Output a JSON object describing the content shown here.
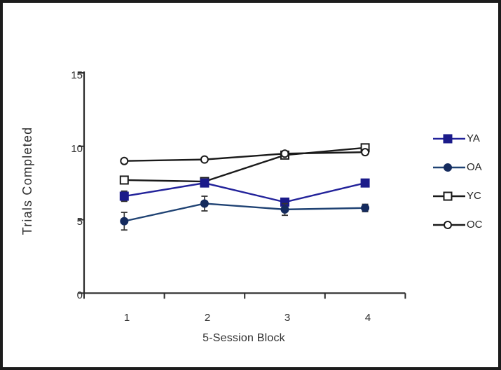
{
  "figure": {
    "background_color": "#ffffff",
    "border_color": "#1c1c1c"
  },
  "chart_data": {
    "type": "line",
    "title": "",
    "xlabel": "5-Session Block",
    "ylabel": "Trials Completed",
    "x": [
      1,
      2,
      3,
      4
    ],
    "x_tick_labels": [
      "1",
      "2",
      "3",
      "4"
    ],
    "y_ticks": [
      0,
      5,
      10,
      15
    ],
    "y_tick_labels": [
      "0",
      "5",
      "10",
      "15"
    ],
    "ylim": [
      0,
      15
    ],
    "grid": false,
    "legend_position": "right",
    "axis_color": "#2b2b2b",
    "error_bar_color": "#333333",
    "series": [
      {
        "name": "YA",
        "values": [
          6.6,
          7.5,
          6.2,
          7.5
        ],
        "errors": [
          0.35,
          0.2,
          0.2,
          0.2
        ],
        "line_color": "#22229a",
        "marker": "filled-square",
        "marker_color": "#1b1b8a"
      },
      {
        "name": "OA",
        "values": [
          4.9,
          6.1,
          5.7,
          5.8
        ],
        "errors": [
          0.6,
          0.5,
          0.4,
          0.25
        ],
        "line_color": "#1f4273",
        "marker": "filled-circle",
        "marker_color": "#152b5e"
      },
      {
        "name": "YC",
        "values": [
          7.7,
          7.6,
          9.4,
          9.9
        ],
        "errors": [
          0.2,
          0.2,
          0.15,
          0.25
        ],
        "line_color": "#1a1a1a",
        "marker": "open-square",
        "marker_color": "#ffffff"
      },
      {
        "name": "OC",
        "values": [
          9.0,
          9.1,
          9.5,
          9.6
        ],
        "errors": [
          0.12,
          0.12,
          0.12,
          0.12
        ],
        "line_color": "#1a1a1a",
        "marker": "open-circle",
        "marker_color": "#ffffff"
      }
    ]
  }
}
